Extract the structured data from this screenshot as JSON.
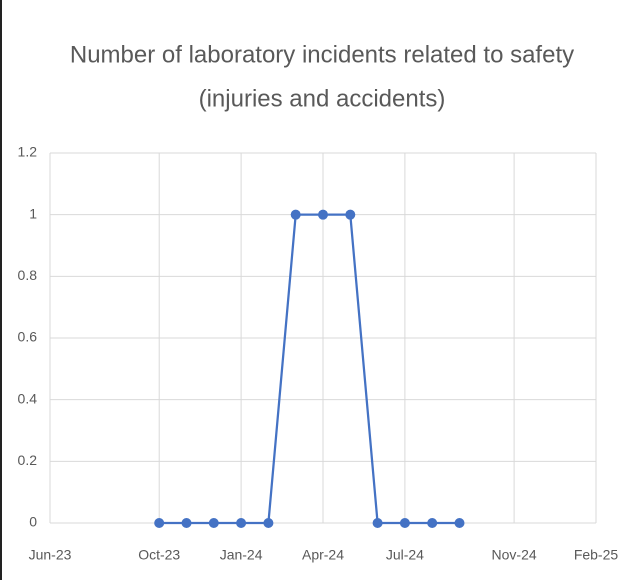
{
  "chart_data": {
    "type": "line",
    "title": [
      "Number of laboratory incidents related to safety",
      "(injuries and accidents)"
    ],
    "x": [
      "2023-10",
      "2023-11",
      "2023-12",
      "2024-01",
      "2024-02",
      "2024-03",
      "2024-04",
      "2024-05",
      "2024-06",
      "2024-07",
      "2024-08",
      "2024-09"
    ],
    "series": [
      {
        "color": "#4472c4",
        "values": [
          0,
          0,
          0,
          0,
          0,
          1,
          1,
          1,
          0,
          0,
          0,
          0
        ]
      }
    ],
    "xlim": [
      "2023-06",
      "2025-02"
    ],
    "xticks": [
      {
        "value": "2023-06",
        "label": "Jun-23"
      },
      {
        "value": "2023-10",
        "label": "Oct-23"
      },
      {
        "value": "2024-01",
        "label": "Jan-24"
      },
      {
        "value": "2024-04",
        "label": "Apr-24"
      },
      {
        "value": "2024-07",
        "label": "Jul-24"
      },
      {
        "value": "2024-11",
        "label": "Nov-24"
      },
      {
        "value": "2025-02",
        "label": "Feb-25"
      }
    ],
    "ylim": [
      0,
      1.2
    ],
    "yticks": [
      0,
      0.2,
      0.4,
      0.6,
      0.8,
      1,
      1.2
    ],
    "grid": true
  }
}
